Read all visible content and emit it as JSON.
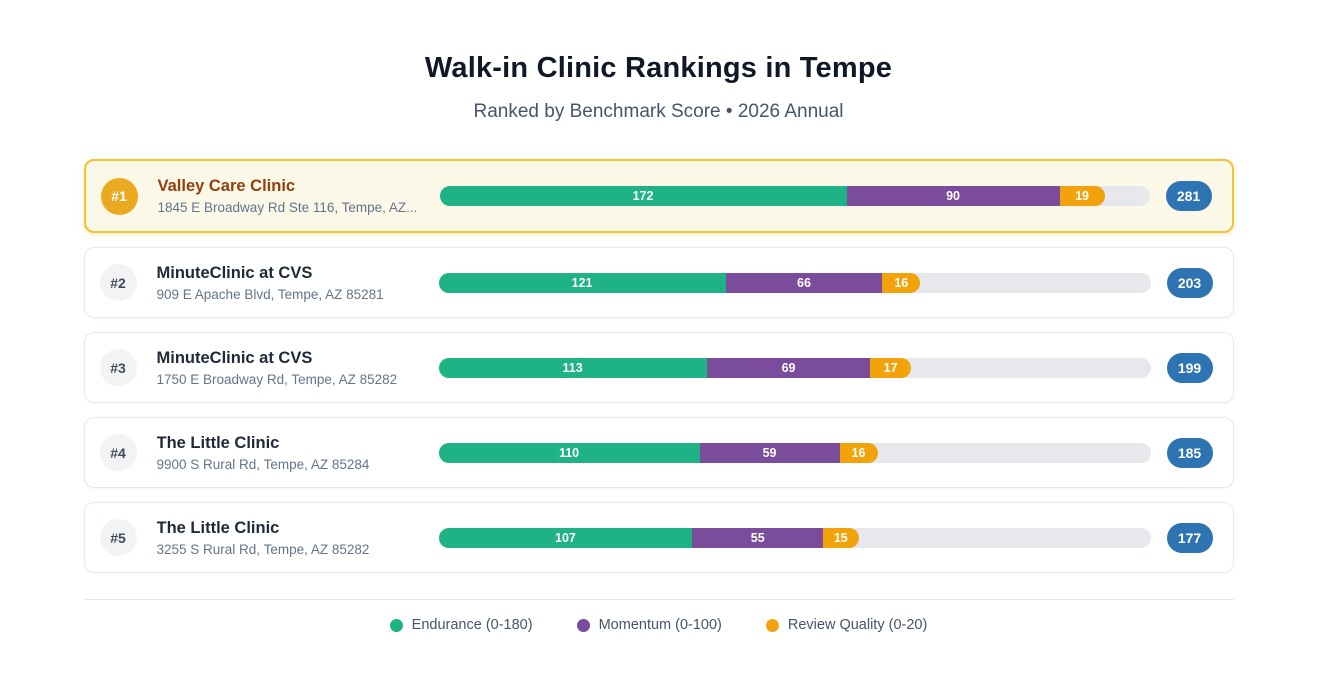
{
  "page": {
    "title": "Walk-in Clinic Rankings in Tempe",
    "subtitle": "Ranked by Benchmark Score • 2026 Annual"
  },
  "colors": {
    "endurance": "#1eb284",
    "momentum": "#7b4c9c",
    "review_quality": "#f2a30b",
    "total_badge": "#2e73b2",
    "bar_track": "#e6e8ec",
    "highlight_border": "#f1c232",
    "highlight_background": "#fcf8e8",
    "highlight_rank_badge": "#eaa921",
    "highlight_name": "#92400e"
  },
  "legend": [
    {
      "label": "Endurance (0-180)",
      "color": "#1eb284"
    },
    {
      "label": "Momentum (0-100)",
      "color": "#7b4c9c"
    },
    {
      "label": "Review Quality (0-20)",
      "color": "#f2a30b"
    }
  ],
  "rankings": [
    {
      "rank": "#1",
      "name": "Valley Care Clinic",
      "address": "1845 E Broadway Rd Ste 116, Tempe, AZ...",
      "endurance": 172,
      "momentum": 90,
      "review_quality": 19,
      "total": 281,
      "highlighted": true
    },
    {
      "rank": "#2",
      "name": "MinuteClinic at CVS",
      "address": "909 E Apache Blvd, Tempe, AZ 85281",
      "endurance": 121,
      "momentum": 66,
      "review_quality": 16,
      "total": 203,
      "highlighted": false
    },
    {
      "rank": "#3",
      "name": "MinuteClinic at CVS",
      "address": "1750 E Broadway Rd, Tempe, AZ 85282",
      "endurance": 113,
      "momentum": 69,
      "review_quality": 17,
      "total": 199,
      "highlighted": false
    },
    {
      "rank": "#4",
      "name": "The Little Clinic",
      "address": "9900 S Rural Rd, Tempe, AZ 85284",
      "endurance": 110,
      "momentum": 59,
      "review_quality": 16,
      "total": 185,
      "highlighted": false
    },
    {
      "rank": "#5",
      "name": "The Little Clinic",
      "address": "3255 S Rural Rd, Tempe, AZ 85282",
      "endurance": 107,
      "momentum": 55,
      "review_quality": 15,
      "total": 177,
      "highlighted": false
    }
  ],
  "chart_data": {
    "type": "bar",
    "variant": "horizontal-stacked",
    "title": "Walk-in Clinic Rankings in Tempe",
    "subtitle": "Ranked by Benchmark Score • 2026 Annual",
    "categories": [
      "Valley Care Clinic",
      "MinuteClinic at CVS",
      "MinuteClinic at CVS",
      "The Little Clinic",
      "The Little Clinic"
    ],
    "series": [
      {
        "name": "Endurance (0-180)",
        "color": "#1eb284",
        "values": [
          172,
          121,
          113,
          110,
          107
        ]
      },
      {
        "name": "Momentum (0-100)",
        "color": "#7b4c9c",
        "values": [
          90,
          66,
          69,
          59,
          55
        ]
      },
      {
        "name": "Review Quality (0-20)",
        "color": "#f2a30b",
        "values": [
          19,
          16,
          17,
          16,
          15
        ]
      }
    ],
    "totals": [
      281,
      203,
      199,
      185,
      177
    ],
    "xlim": [
      0,
      300
    ],
    "grid": false,
    "legend_position": "bottom"
  }
}
